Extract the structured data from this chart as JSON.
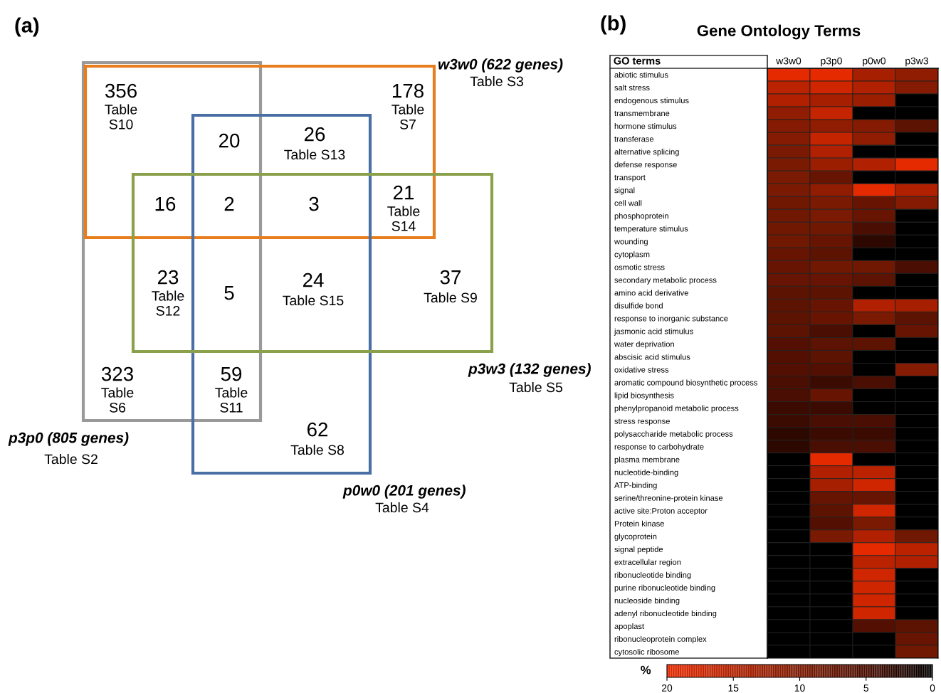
{
  "chart_data": [
    {
      "type": "other",
      "title": "(a)",
      "categories": [
        "p3p0 (805 genes)",
        "w3w0 (622 genes)",
        "p0w0 (201 genes)",
        "p3w3 (132 genes)"
      ],
      "colors": [
        "#999999",
        "#e87d1e",
        "#4a6fa5",
        "#8ba04a"
      ],
      "annotations": [
        "356\nTable\nS10",
        "178\nTable\nS7",
        "20",
        "26\nTable S13",
        "16",
        "2",
        "3",
        "21\nTable\nS14",
        "23\nTable\nS12",
        "5",
        "24\nTable S15",
        "37\nTable S9",
        "323\nTable\nS6",
        "59\nTable\nS11",
        "62\nTable S8",
        "Table S2",
        "Table S3",
        "Table S4",
        "Table S5"
      ]
    },
    {
      "type": "heatmap",
      "title": "Gene Ontology Terms",
      "ylabel": "GO terms",
      "clabel": "%",
      "annotations": [
        "(b)"
      ],
      "categories": [
        "w3w0",
        "p3p0",
        "p0w0",
        "p3w3"
      ],
      "y_categories": [
        "abiotic stimulus",
        "salt stress",
        "endogenous stimulus",
        "transmembrane",
        "hormone stimulus",
        "transferase",
        "alternative splicing",
        "defense response",
        "transport",
        "signal",
        "cell wall",
        "phosphoprotein",
        "temperature stimulus",
        "wounding",
        "cytoplasm",
        "osmotic stress",
        "secondary metabolic process",
        "amino acid derivative",
        "disulfide bond",
        "response to inorganic substance",
        "jasmonic acid stimulus",
        "water deprivation",
        "abscisic acid stimulus",
        "oxidative stress",
        "aromatic compound biosynthetic process",
        "lipid biosynthesis",
        "phenylpropanoid metabolic process",
        "stress response",
        "polysaccharide metabolic process",
        "response to carbohydrate",
        "plasma membrane",
        "nucleotide-binding",
        "ATP-binding",
        "serine/threonine-protein kinase",
        "active site:Proton acceptor",
        "Protein kinase",
        "glycoprotein",
        "signal peptide",
        "extracellular region",
        "ribonucleotide binding",
        "purine ribonucleotide binding",
        "nucleoside binding",
        "adenyl ribonucleotide binding",
        "apoplast",
        "ribonucleoprotein complex",
        "cytosolic ribosome"
      ],
      "cells": [
        [
          20,
          20,
          14,
          12
        ],
        [
          16,
          18,
          15,
          11
        ],
        [
          15,
          14,
          13,
          0
        ],
        [
          12,
          17,
          0,
          0
        ],
        [
          11,
          12,
          11,
          7
        ],
        [
          11,
          17,
          12,
          0
        ],
        [
          10,
          15,
          0,
          0
        ],
        [
          10,
          13,
          15,
          20
        ],
        [
          10,
          8,
          0,
          0
        ],
        [
          10,
          12,
          20,
          15
        ],
        [
          9,
          10,
          8,
          11
        ],
        [
          9,
          10,
          8,
          0
        ],
        [
          9,
          9,
          5,
          0
        ],
        [
          9,
          8,
          3,
          0
        ],
        [
          8,
          7,
          0,
          0
        ],
        [
          8,
          9,
          9,
          5
        ],
        [
          8,
          8,
          7,
          0
        ],
        [
          7,
          7,
          0,
          0
        ],
        [
          7,
          8,
          15,
          14
        ],
        [
          7,
          8,
          10,
          7
        ],
        [
          7,
          5,
          0,
          8
        ],
        [
          6,
          7,
          7,
          0
        ],
        [
          6,
          7,
          0,
          0
        ],
        [
          6,
          6,
          0,
          11
        ],
        [
          5,
          4,
          5,
          0
        ],
        [
          5,
          8,
          0,
          0
        ],
        [
          4,
          4,
          0,
          0
        ],
        [
          4,
          5,
          5,
          0
        ],
        [
          3,
          4,
          4,
          0
        ],
        [
          3,
          5,
          5,
          0
        ],
        [
          0,
          20,
          0,
          0
        ],
        [
          0,
          15,
          16,
          0
        ],
        [
          0,
          14,
          18,
          0
        ],
        [
          0,
          8,
          8,
          0
        ],
        [
          0,
          7,
          18,
          0
        ],
        [
          0,
          6,
          10,
          0
        ],
        [
          0,
          10,
          15,
          9
        ],
        [
          0,
          0,
          20,
          16
        ],
        [
          0,
          0,
          16,
          15
        ],
        [
          0,
          0,
          18,
          0
        ],
        [
          0,
          0,
          18,
          0
        ],
        [
          0,
          0,
          18,
          0
        ],
        [
          0,
          0,
          18,
          0
        ],
        [
          0,
          0,
          6,
          7
        ],
        [
          0,
          0,
          0,
          8
        ],
        [
          0,
          0,
          0,
          9
        ]
      ],
      "clim": [
        0,
        20
      ],
      "cticks": [
        20,
        15,
        10,
        5,
        0
      ]
    }
  ]
}
